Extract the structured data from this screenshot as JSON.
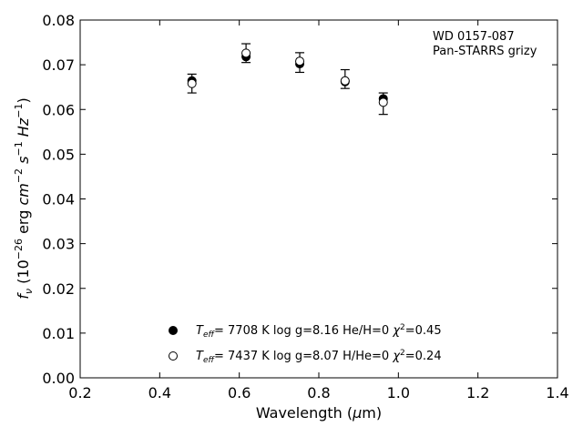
{
  "chart_data": {
    "type": "scatter",
    "xlabel": "Wavelength (μm)",
    "ylabel": "f_ν (10^-26 erg cm^-2 s^-1 Hz^-1)",
    "xlim": [
      0.2,
      1.4
    ],
    "ylim": [
      0.0,
      0.08
    ],
    "x_ticks": [
      0.2,
      0.4,
      0.6,
      0.8,
      1.0,
      1.2,
      1.4
    ],
    "y_ticks": [
      0.0,
      0.01,
      0.02,
      0.03,
      0.04,
      0.05,
      0.06,
      0.07,
      0.08
    ],
    "x_tick_labels": [
      "0.2",
      "0.4",
      "0.6",
      "0.8",
      "1.0",
      "1.2",
      "1.4"
    ],
    "y_tick_labels": [
      "0.00",
      "0.01",
      "0.02",
      "0.03",
      "0.04",
      "0.05",
      "0.06",
      "0.07",
      "0.08"
    ],
    "annotation": [
      "WD 0157-087",
      "Pan-STARRS grizy"
    ],
    "grid": false,
    "legend_position": "bottom-center",
    "observed": {
      "x": [
        0.481,
        0.617,
        0.752,
        0.866,
        0.962
      ],
      "y": [
        0.0658,
        0.0726,
        0.0705,
        0.0668,
        0.0613
      ],
      "yerr": [
        0.0021,
        0.0021,
        0.0022,
        0.0021,
        0.0024
      ]
    },
    "series": [
      {
        "name": "T_eff=  7708 K  log g=8.16  He/H=0  χ²=0.45",
        "marker": "filled",
        "x": [
          0.481,
          0.617,
          0.752,
          0.866,
          0.962
        ],
        "y": [
          0.0664,
          0.0718,
          0.0702,
          0.0662,
          0.0624
        ]
      },
      {
        "name": "T_eff=  7437 K  log g=8.07  H/He=0  χ²=0.24",
        "marker": "open",
        "x": [
          0.481,
          0.617,
          0.752,
          0.866,
          0.962
        ],
        "y": [
          0.0658,
          0.0726,
          0.0708,
          0.0664,
          0.0616
        ]
      }
    ],
    "legend": [
      {
        "teff": "7708 K",
        "rest": "log g=8.16  He/H=0",
        "chi": "=0.45",
        "marker": "filled"
      },
      {
        "teff": "7437 K",
        "rest": "log g=8.07  H/He=0",
        "chi": "=0.24",
        "marker": "open"
      }
    ],
    "colors": {
      "marker": "#000000",
      "axis": "#000000",
      "background": "#ffffff"
    }
  }
}
